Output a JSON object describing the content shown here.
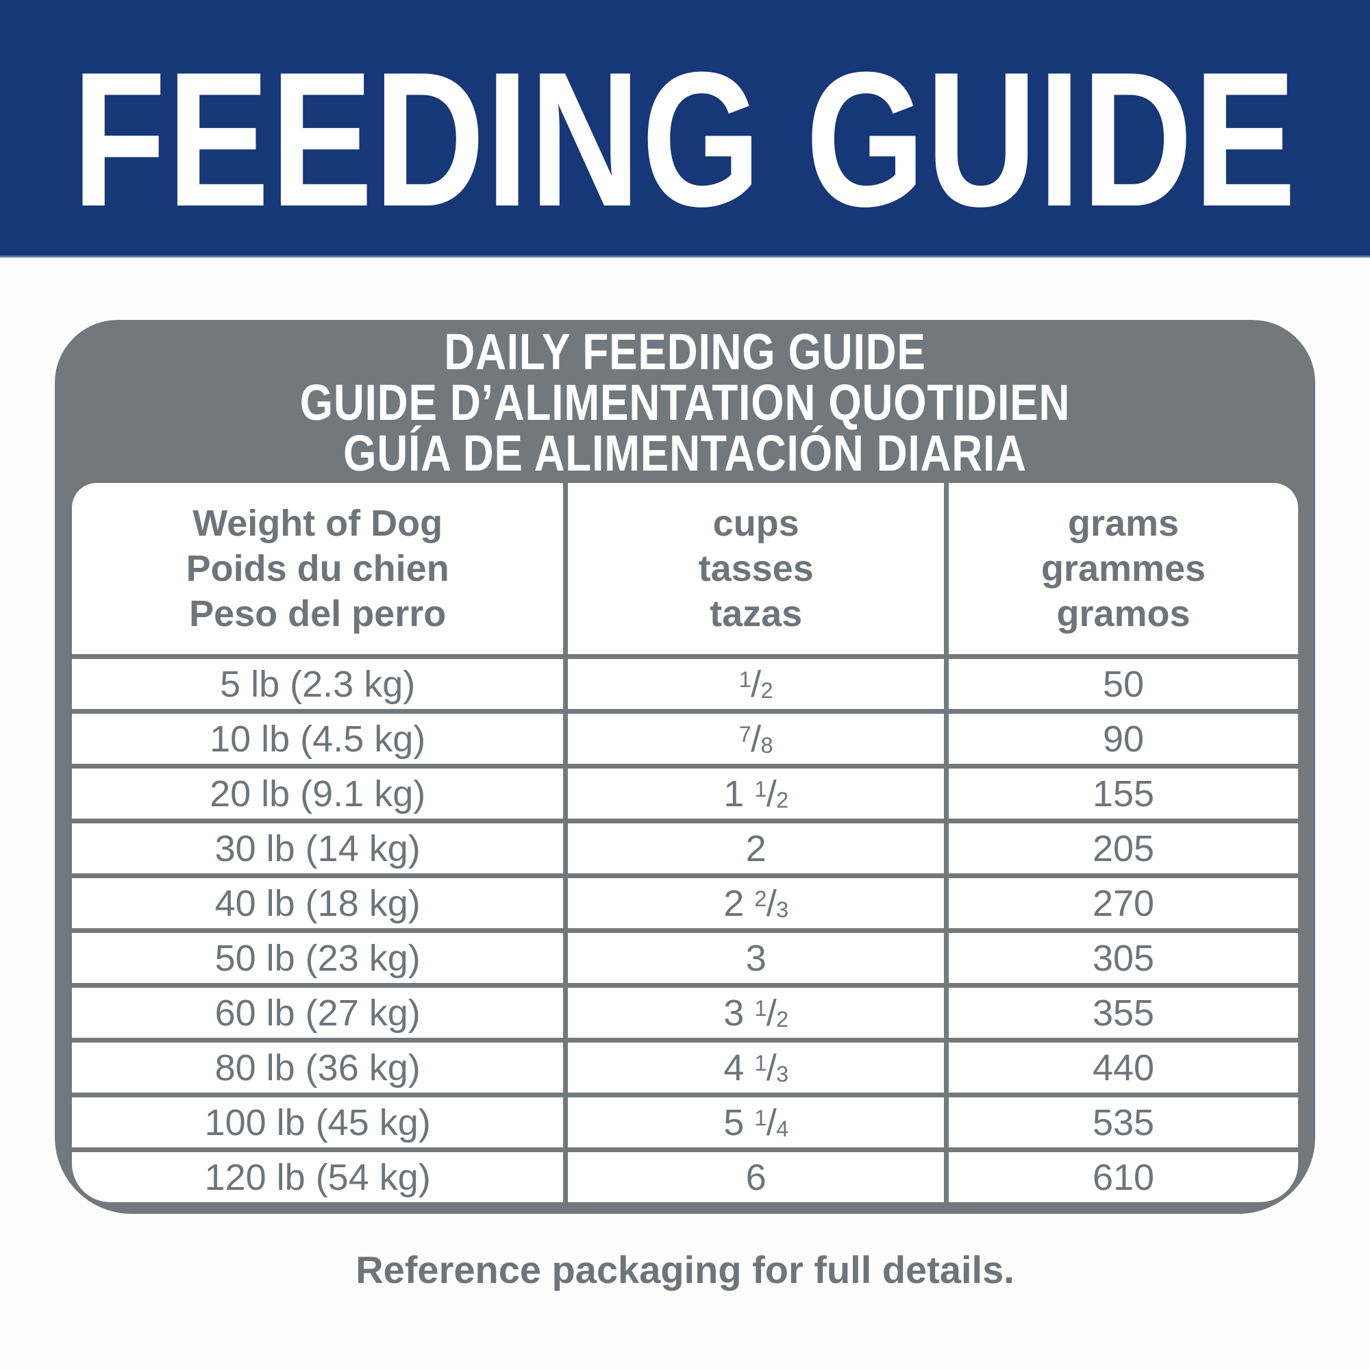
{
  "banner": {
    "title": "FEEDING GUIDE",
    "bg_color": "#163778",
    "text_color": "#ffffff"
  },
  "card": {
    "bg_color": "#73787c",
    "title_lines": [
      "DAILY FEEDING GUIDE",
      "GUIDE D’ALIMENTATION QUOTIDIEN",
      "GUÍA DE ALIMENTACIÓN DIARIA"
    ],
    "table": {
      "columns": [
        {
          "id": "weight",
          "lines": [
            "Weight of Dog",
            "Poids du chien",
            "Peso del perro"
          ]
        },
        {
          "id": "cups",
          "lines": [
            "cups",
            "tasses",
            "tazas"
          ]
        },
        {
          "id": "grams",
          "lines": [
            "grams",
            "grammes",
            "gramos"
          ]
        }
      ],
      "rows": [
        {
          "weight": "5 lb (2.3 kg)",
          "cups": "1/2",
          "grams": "50"
        },
        {
          "weight": "10 lb (4.5 kg)",
          "cups": "7/8",
          "grams": "90"
        },
        {
          "weight": "20 lb (9.1 kg)",
          "cups": "1 1/2",
          "grams": "155"
        },
        {
          "weight": "30 lb (14 kg)",
          "cups": "2",
          "grams": "205"
        },
        {
          "weight": "40 lb (18 kg)",
          "cups": "2 2/3",
          "grams": "270"
        },
        {
          "weight": "50 lb (23 kg)",
          "cups": "3",
          "grams": "305"
        },
        {
          "weight": "60 lb (27 kg)",
          "cups": "3 1/2",
          "grams": "355"
        },
        {
          "weight": "80 lb (36 kg)",
          "cups": "4 1/3",
          "grams": "440"
        },
        {
          "weight": "100 lb (45 kg)",
          "cups": "5 1/4",
          "grams": "535"
        },
        {
          "weight": "120 lb (54 kg)",
          "cups": "6",
          "grams": "610"
        }
      ]
    }
  },
  "footer": {
    "note": "Reference packaging for full details."
  }
}
